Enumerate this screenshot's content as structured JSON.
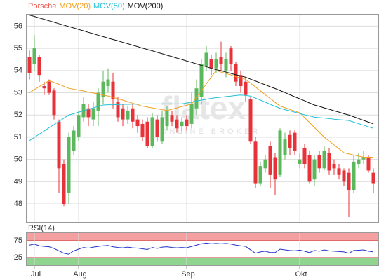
{
  "chart_data": [
    {
      "type": "candlestick",
      "name": "Porsche",
      "name_color": "#e8574e",
      "watermark": [
        "flatex",
        "ONLINE BROKER"
      ],
      "categories": [
        null,
        "Jul",
        null,
        null,
        null,
        null,
        null,
        null,
        null,
        null,
        "Aug",
        null,
        null,
        null,
        null,
        null,
        null,
        null,
        null,
        null,
        null,
        null,
        null,
        null,
        null,
        null,
        null,
        null,
        null,
        null,
        null,
        null,
        "Sep",
        null,
        null,
        null,
        null,
        null,
        null,
        null,
        null,
        null,
        null,
        null,
        null,
        null,
        null,
        null,
        null,
        null,
        null,
        null,
        null,
        null,
        null,
        "Okt",
        null,
        null,
        null,
        null,
        null,
        null,
        null,
        null,
        null,
        null,
        null,
        null,
        null,
        null,
        null
      ],
      "open": [
        54.6,
        54.3,
        54.6,
        53.3,
        53.5,
        53.1,
        51.7,
        49.8,
        48.5,
        50.4,
        51.0,
        51.9,
        52.3,
        51.8,
        52.2,
        52.8,
        53.3,
        53.5,
        52.6,
        52.3,
        51.8,
        52.3,
        51.8,
        51.6,
        51.7,
        50.6,
        51.8,
        50.8,
        51.5,
        52.0,
        51.8,
        51.5,
        51.8,
        51.6,
        52.3,
        52.8,
        54.2,
        54.5,
        54.1,
        54.6,
        54.0,
        55.0,
        54.3,
        53.8,
        53.5,
        52.7,
        50.8,
        48.9,
        49.6,
        50.6,
        50.1,
        49.3,
        50.2,
        51.1,
        51.2,
        49.8,
        50.5,
        50.2,
        49.1,
        50.2,
        49.6,
        50.3,
        49.8,
        49.6,
        49.5,
        49.4,
        48.6,
        49.8,
        50.0,
        50.1,
        49.4
      ],
      "high": [
        54.9,
        55.6,
        54.7,
        53.5,
        53.6,
        53.2,
        51.8,
        50.0,
        51.2,
        51.5,
        52.2,
        52.8,
        52.5,
        52.6,
        53.2,
        54.0,
        54.1,
        53.9,
        52.8,
        52.5,
        52.4,
        52.5,
        52.0,
        51.8,
        51.9,
        52.1,
        52.0,
        52.2,
        52.4,
        52.2,
        52.0,
        51.9,
        52.0,
        53.0,
        53.6,
        54.5,
        55.1,
        54.7,
        54.8,
        55.3,
        54.8,
        55.1,
        54.4,
        54.0,
        53.7,
        52.8,
        51.0,
        49.9,
        50.2,
        50.8,
        50.3,
        51.4,
        51.2,
        51.3,
        51.3,
        50.3,
        50.7,
        50.4,
        50.2,
        50.4,
        50.6,
        50.5,
        50.0,
        49.8,
        49.6,
        49.6,
        50.2,
        50.3,
        50.4,
        50.2,
        49.6
      ],
      "low": [
        53.6,
        54.0,
        53.5,
        52.9,
        52.9,
        51.8,
        48.5,
        47.9,
        48.0,
        50.2,
        50.8,
        51.7,
        51.5,
        51.5,
        51.5,
        52.5,
        53.0,
        52.3,
        51.7,
        51.5,
        51.6,
        51.4,
        51.2,
        50.8,
        50.5,
        50.5,
        50.8,
        50.7,
        51.3,
        51.5,
        51.2,
        51.2,
        51.3,
        51.4,
        52.0,
        52.5,
        54.0,
        53.8,
        53.9,
        54.0,
        53.7,
        54.0,
        53.3,
        53.0,
        52.6,
        50.7,
        48.7,
        48.8,
        49.4,
        48.7,
        48.4,
        49.2,
        50.0,
        50.2,
        50.2,
        49.6,
        49.6,
        48.9,
        48.8,
        49.4,
        49.5,
        49.3,
        49.3,
        49.1,
        48.8,
        47.4,
        48.5,
        49.6,
        49.8,
        49.4,
        48.5
      ],
      "close": [
        53.9,
        55.0,
        53.8,
        53.2,
        53.0,
        52.0,
        49.6,
        48.0,
        51.0,
        51.3,
        52.0,
        52.5,
        51.9,
        52.3,
        53.0,
        53.5,
        53.6,
        52.7,
        51.9,
        51.8,
        52.2,
        51.7,
        51.5,
        51.0,
        50.6,
        51.9,
        51.0,
        51.9,
        52.2,
        51.7,
        51.4,
        51.7,
        51.5,
        52.5,
        53.2,
        54.3,
        54.8,
        54.1,
        54.5,
        54.3,
        54.5,
        54.3,
        53.5,
        53.3,
        52.9,
        50.8,
        48.9,
        49.7,
        50.0,
        49.3,
        49.1,
        51.3,
        50.9,
        50.5,
        50.4,
        50.0,
        49.8,
        49.0,
        50.0,
        49.6,
        50.4,
        49.5,
        49.6,
        49.3,
        49.0,
        48.6,
        49.9,
        50.0,
        50.1,
        49.5,
        48.9
      ],
      "up_color": "#5cb85c",
      "down_color": "#e8323a",
      "series": [
        {
          "name": "MOV(20)",
          "color": "#f0a020",
          "values": [
            53.0,
            53.14,
            53.28,
            53.41,
            53.55,
            53.46,
            53.38,
            53.29,
            53.2,
            53.16,
            53.12,
            53.08,
            53.03,
            52.99,
            52.95,
            52.9,
            52.85,
            52.8,
            52.73,
            52.67,
            52.6,
            52.53,
            52.47,
            52.4,
            52.36,
            52.32,
            52.28,
            52.24,
            52.2,
            52.26,
            52.32,
            52.38,
            52.44,
            52.5,
            52.8,
            53.1,
            53.4,
            53.7,
            54.0,
            53.93,
            53.87,
            53.8,
            53.73,
            53.67,
            53.6,
            53.43,
            53.26,
            53.09,
            52.91,
            52.74,
            52.57,
            52.4,
            52.33,
            52.25,
            52.18,
            52.1,
            51.88,
            51.66,
            51.44,
            51.22,
            51.0,
            50.83,
            50.65,
            50.48,
            50.3,
            50.25,
            50.2,
            50.15,
            50.1,
            50.1,
            50.1
          ]
        },
        {
          "name": "MOV(50)",
          "color": "#22c0d8",
          "values": [
            50.85,
            50.99,
            51.14,
            51.28,
            51.43,
            51.57,
            51.71,
            51.86,
            52.0,
            52.06,
            52.13,
            52.19,
            52.26,
            52.32,
            52.39,
            52.45,
            52.46,
            52.46,
            52.47,
            52.48,
            52.48,
            52.49,
            52.49,
            52.5,
            52.5,
            52.5,
            52.5,
            52.5,
            52.5,
            52.5,
            52.5,
            52.5,
            52.54,
            52.58,
            52.63,
            52.67,
            52.71,
            52.75,
            52.78,
            52.8,
            52.83,
            52.85,
            52.88,
            52.9,
            52.88,
            52.85,
            52.76,
            52.67,
            52.58,
            52.48,
            52.39,
            52.3,
            52.24,
            52.19,
            52.13,
            52.07,
            52.01,
            51.96,
            51.9,
            51.88,
            51.86,
            51.84,
            51.81,
            51.79,
            51.77,
            51.75,
            51.68,
            51.61,
            51.54,
            51.47,
            51.4
          ]
        },
        {
          "name": "MOV(200)",
          "color": "#111111",
          "values": [
            56.5,
            56.44,
            56.37,
            56.31,
            56.24,
            56.18,
            56.11,
            56.05,
            55.98,
            55.92,
            55.85,
            55.79,
            55.72,
            55.66,
            55.59,
            55.53,
            55.46,
            55.4,
            55.34,
            55.27,
            55.21,
            55.14,
            55.08,
            55.01,
            54.95,
            54.89,
            54.82,
            54.76,
            54.69,
            54.63,
            54.56,
            54.5,
            54.43,
            54.37,
            54.3,
            54.23,
            54.17,
            54.1,
            54.04,
            53.99,
            53.93,
            53.87,
            53.81,
            53.76,
            53.7,
            53.61,
            53.53,
            53.44,
            53.36,
            53.27,
            53.19,
            53.1,
            53.01,
            52.91,
            52.82,
            52.73,
            52.64,
            52.54,
            52.45,
            52.39,
            52.32,
            52.26,
            52.19,
            52.13,
            52.06,
            52.0,
            51.92,
            51.84,
            51.76,
            51.68,
            51.6
          ]
        }
      ],
      "ylim": [
        47.15,
        56.55
      ],
      "yticks": [
        48,
        49,
        50,
        51,
        52,
        53,
        54,
        55,
        56
      ],
      "grid": true
    },
    {
      "type": "line",
      "series": [
        {
          "name": "RSI(14)",
          "color": "#2233cc",
          "values": [
            62,
            65,
            60,
            58,
            57,
            52,
            45,
            38,
            35,
            45,
            50,
            55,
            53,
            56,
            58,
            60,
            61,
            57,
            55,
            54,
            56,
            54,
            53,
            51,
            49,
            55,
            52,
            56,
            57,
            55,
            54,
            55,
            54,
            58,
            62,
            66,
            68,
            66,
            67,
            66,
            67,
            65,
            62,
            60,
            58,
            48,
            38,
            42,
            44,
            40,
            40,
            50,
            48,
            46,
            45,
            47,
            44,
            40,
            46,
            44,
            48,
            45,
            44,
            43,
            42,
            38,
            46,
            47,
            48,
            44,
            42
          ]
        }
      ],
      "bands": [
        {
          "range": [
            75,
            100
          ],
          "color": "#f4a0a0"
        },
        {
          "range": [
            0,
            25
          ],
          "color": "#8fd48f"
        }
      ],
      "ylim": [
        0,
        100
      ],
      "yticks": [
        25,
        75
      ],
      "grid": true
    }
  ]
}
